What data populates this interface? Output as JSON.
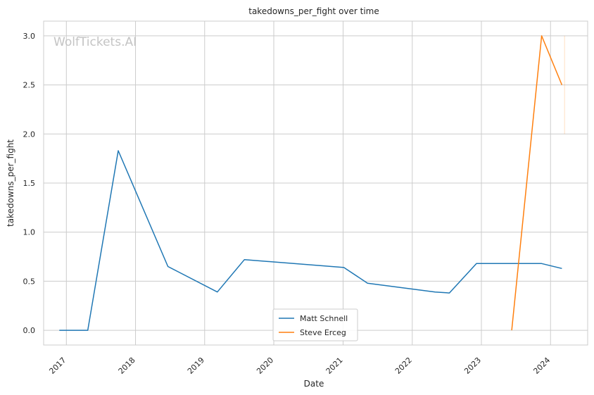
{
  "chart_data": {
    "type": "line",
    "title": "takedowns_per_fight over time",
    "xlabel": "Date",
    "ylabel": "takedowns_per_fight",
    "watermark": "WolfTickets.AI",
    "x_ticks": [
      "2017",
      "2018",
      "2019",
      "2020",
      "2021",
      "2022",
      "2023",
      "2024"
    ],
    "y_ticks": [
      "0.0",
      "0.5",
      "1.0",
      "1.5",
      "2.0",
      "2.5",
      "3.0"
    ],
    "xlim": [
      "2016-09-03",
      "2024-07-15"
    ],
    "ylim": [
      -0.15,
      3.15
    ],
    "grid": true,
    "legend_position": "bottom-center",
    "series": [
      {
        "name": "Matt Schnell",
        "color": "#1f77b4",
        "points": [
          {
            "x": "2016-11-25",
            "y": 0.0
          },
          {
            "x": "2017-04-24",
            "y": 0.0
          },
          {
            "x": "2017-10-02",
            "y": 1.83
          },
          {
            "x": "2018-06-21",
            "y": 0.65
          },
          {
            "x": "2019-03-09",
            "y": 0.39
          },
          {
            "x": "2019-07-30",
            "y": 0.72
          },
          {
            "x": "2021-01-05",
            "y": 0.64
          },
          {
            "x": "2021-05-10",
            "y": 0.48
          },
          {
            "x": "2022-05-02",
            "y": 0.39
          },
          {
            "x": "2022-07-16",
            "y": 0.38
          },
          {
            "x": "2022-12-06",
            "y": 0.68
          },
          {
            "x": "2023-11-15",
            "y": 0.68
          },
          {
            "x": "2024-03-01",
            "y": 0.63
          }
        ]
      },
      {
        "name": "Steve Erceg",
        "color": "#ff7f0e",
        "points": [
          {
            "x": "2023-06-10",
            "y": 0.0
          },
          {
            "x": "2023-11-15",
            "y": 3.0
          },
          {
            "x": "2024-03-01",
            "y": 2.5
          }
        ]
      }
    ],
    "error_band": {
      "series": "Steve Erceg",
      "x": "2024-03-15",
      "y_low": 2.0,
      "y_high": 3.0
    }
  }
}
